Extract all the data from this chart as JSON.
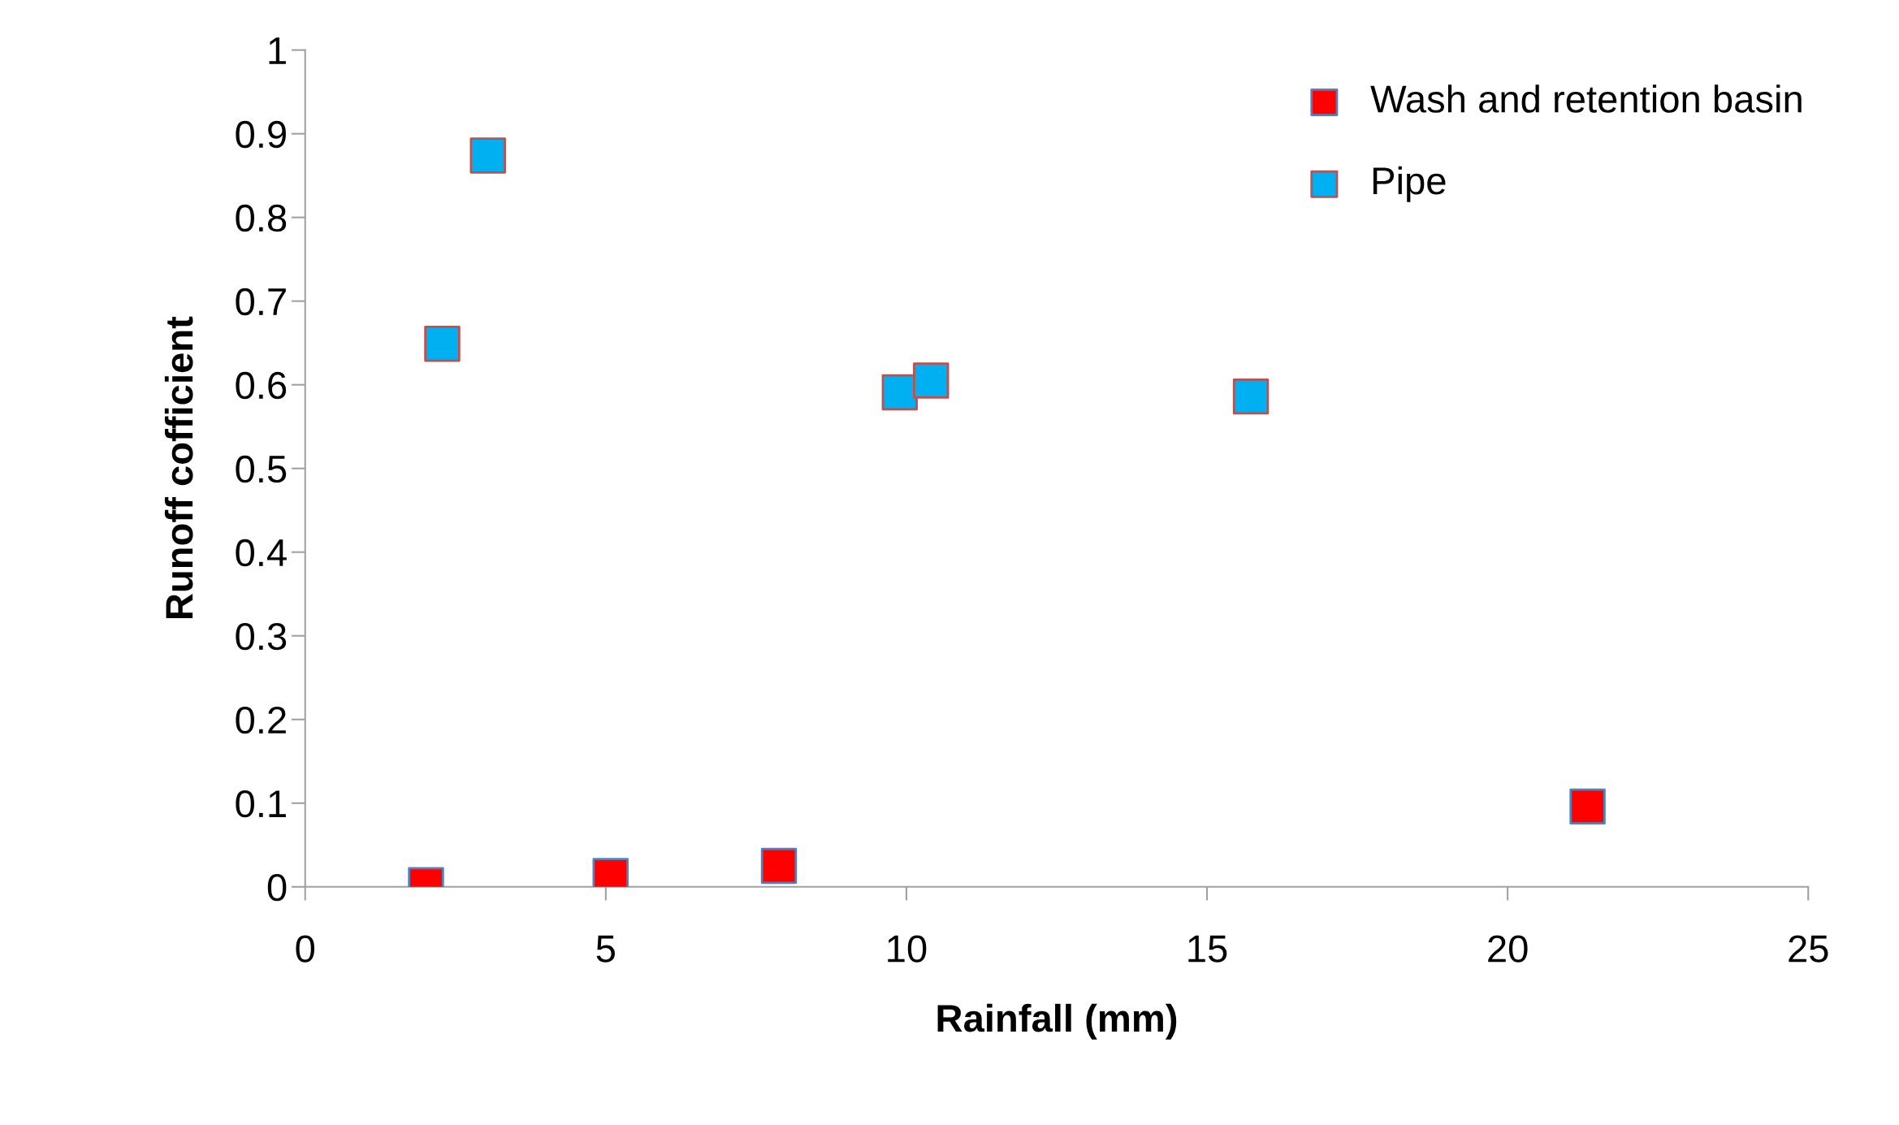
{
  "chart_data": {
    "type": "scatter",
    "xlabel": "Rainfall (mm)",
    "ylabel": "Runoff cofficient",
    "series": [
      {
        "name": "Wash and retention basin",
        "color": "#ff0000",
        "x": [
          2.01,
          5.08,
          7.88,
          21.33
        ],
        "values": [
          0.002,
          0.013,
          0.025,
          0.096
        ]
      },
      {
        "name": "Pipe",
        "color": "#00b0f0",
        "x": [
          3.04,
          2.28,
          9.89,
          10.41,
          15.73
        ],
        "values": [
          0.874,
          0.649,
          0.591,
          0.605,
          0.586
        ]
      }
    ],
    "xlim": [
      0,
      25
    ],
    "xticks": [
      0,
      5,
      10,
      15,
      20,
      25
    ],
    "ylim": [
      0,
      1
    ],
    "yticks": [
      0,
      0.1,
      0.2,
      0.3,
      0.4,
      0.5,
      0.6,
      0.7,
      0.8,
      0.9,
      1
    ],
    "marker": "square",
    "grid": false,
    "legend": "top right"
  }
}
